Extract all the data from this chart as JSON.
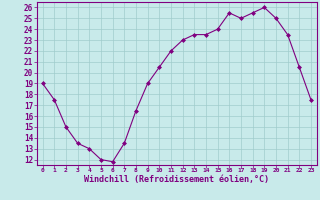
{
  "x": [
    0,
    1,
    2,
    3,
    4,
    5,
    6,
    7,
    8,
    9,
    10,
    11,
    12,
    13,
    14,
    15,
    16,
    17,
    18,
    19,
    20,
    21,
    22,
    23
  ],
  "y": [
    19,
    17.5,
    15,
    13.5,
    13,
    12,
    11.8,
    13.5,
    16.5,
    19,
    20.5,
    22,
    23,
    23.5,
    23.5,
    24,
    25.5,
    25,
    25.5,
    26,
    25,
    23.5,
    20.5,
    17.5
  ],
  "line_color": "#800080",
  "marker": "D",
  "marker_size": 2,
  "bg_color": "#c8eaea",
  "grid_color": "#a0cccc",
  "tick_color": "#800080",
  "xlabel": "Windchill (Refroidissement éolien,°C)",
  "xlabel_fontsize": 6,
  "ytick_fontsize": 5.5,
  "xtick_fontsize": 4.5,
  "ylabel_ticks": [
    12,
    13,
    14,
    15,
    16,
    17,
    18,
    19,
    20,
    21,
    22,
    23,
    24,
    25,
    26
  ],
  "xlim": [
    -0.5,
    23.5
  ],
  "ylim": [
    11.5,
    26.5
  ]
}
